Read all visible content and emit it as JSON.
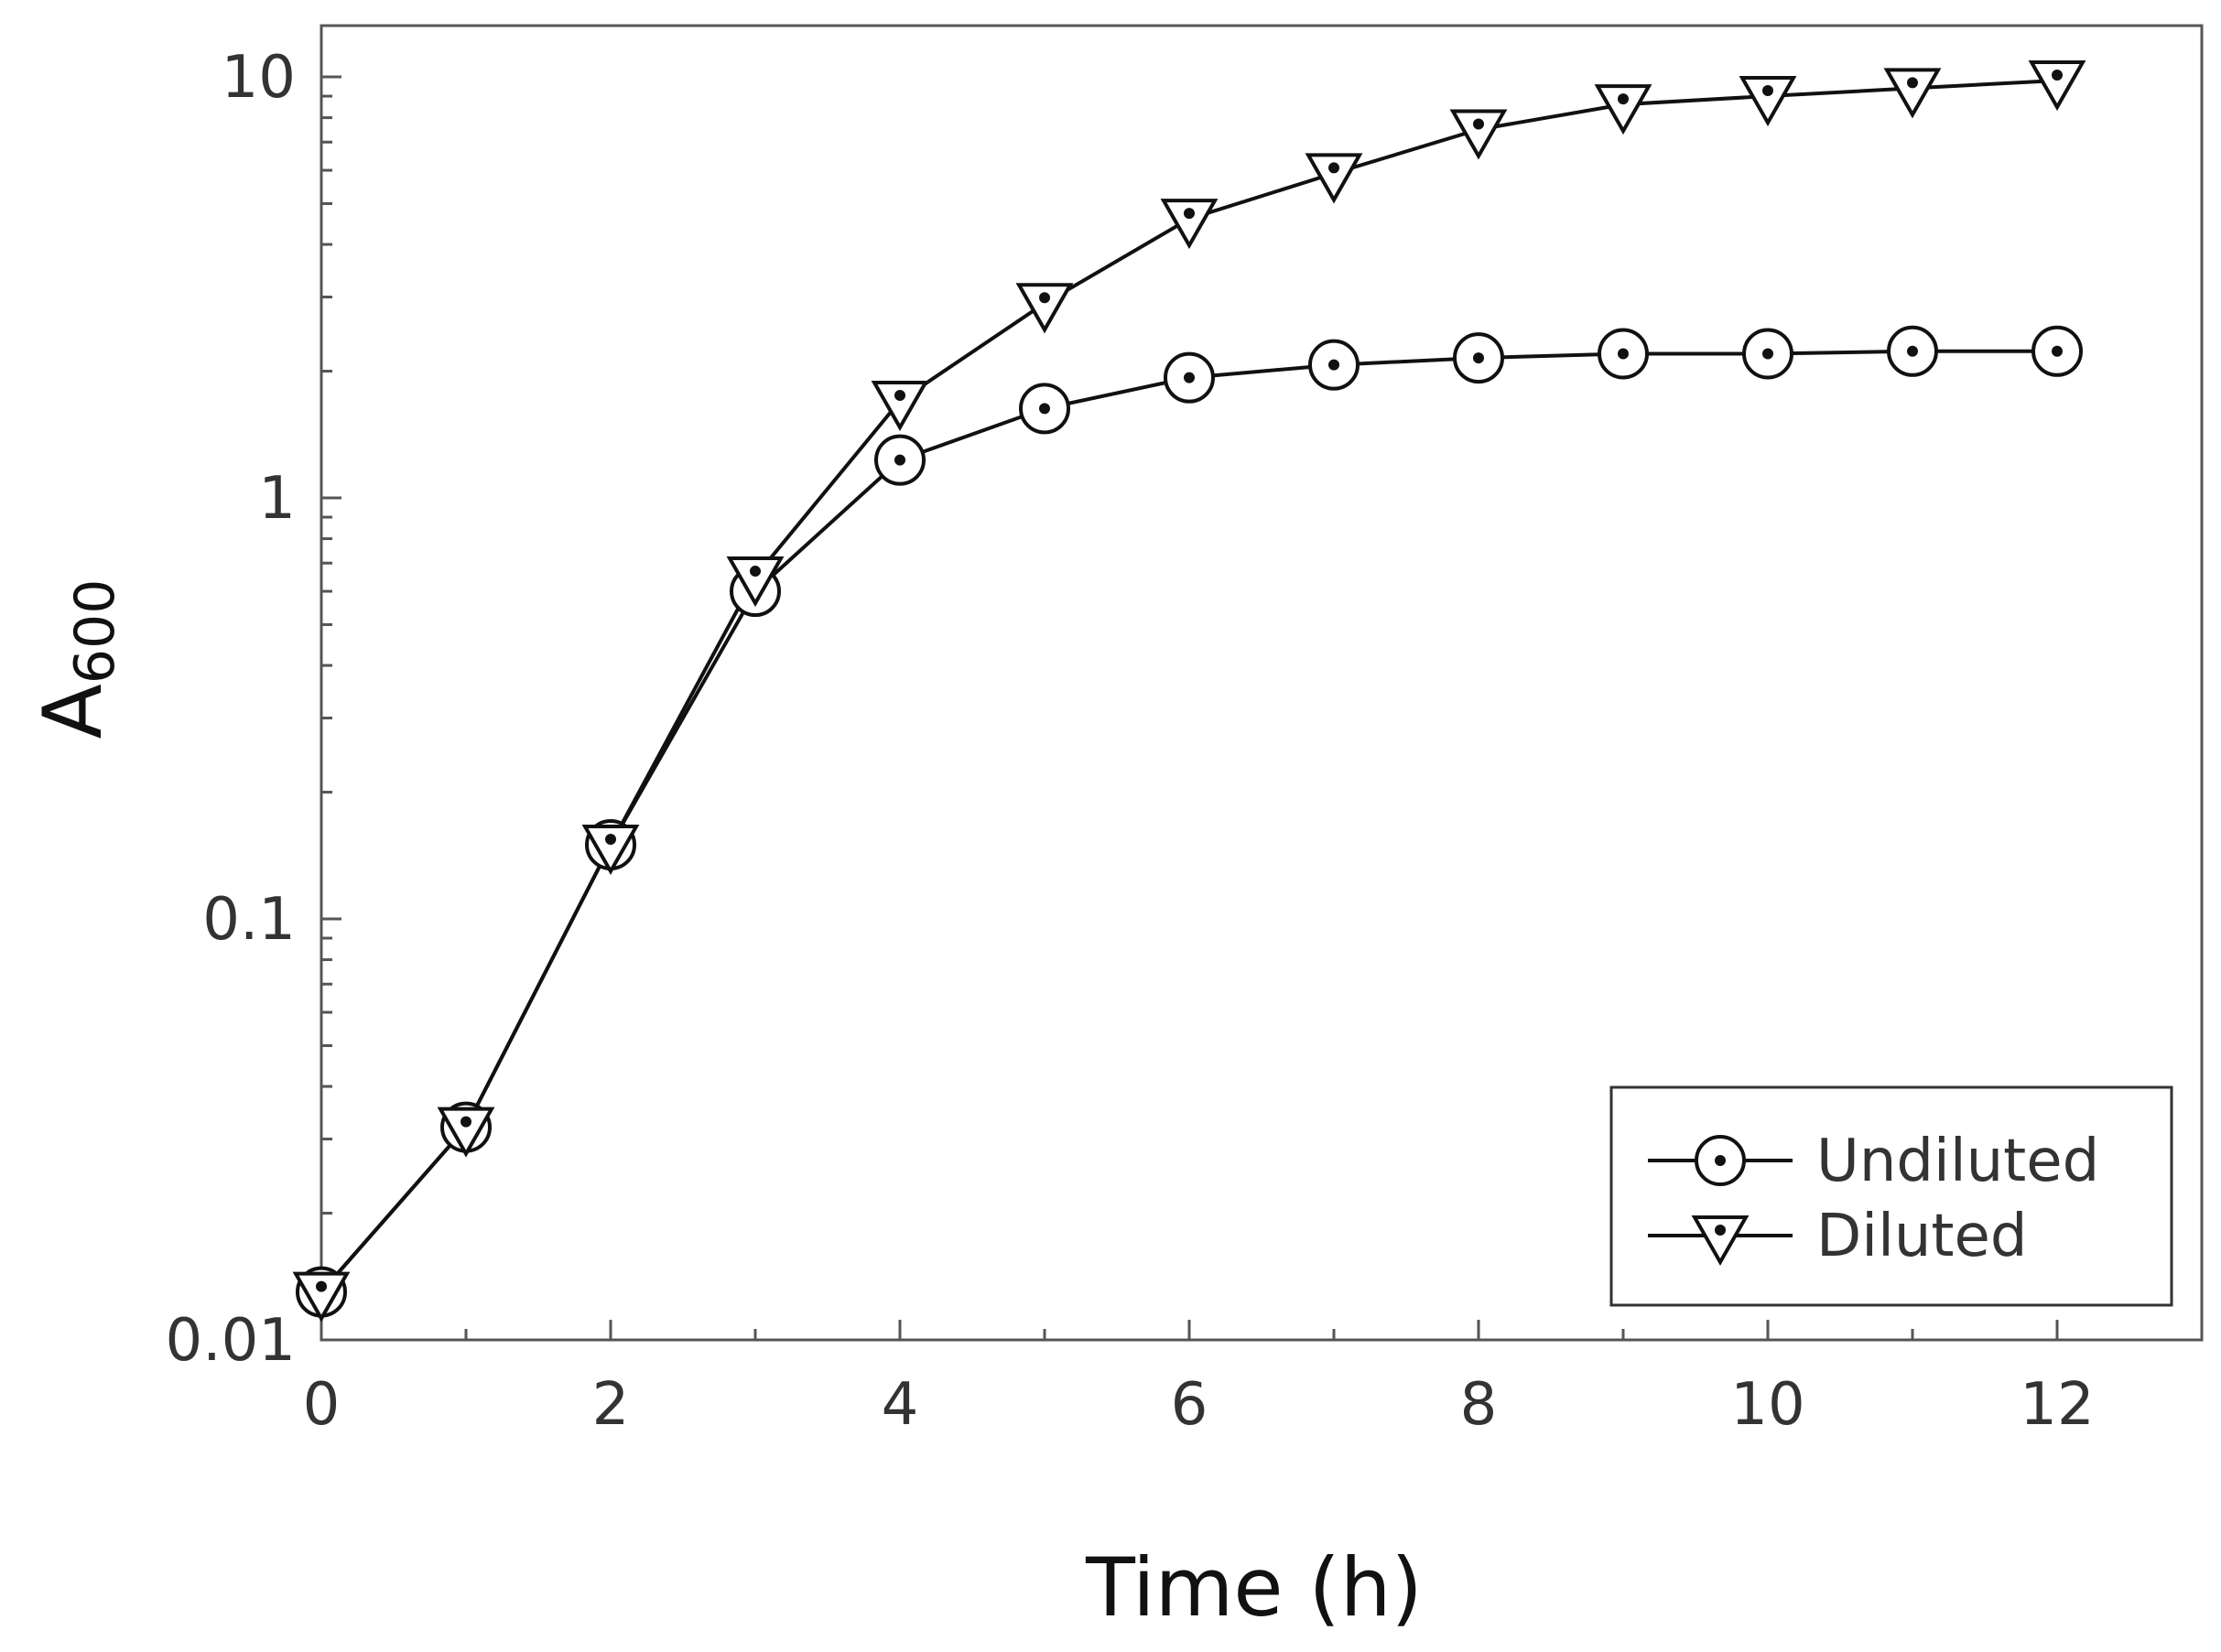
{
  "chart_data": {
    "type": "line",
    "xlabel": "Time (h)",
    "ylabel": {
      "main": "A",
      "sub": "600"
    },
    "xlim": [
      0,
      13
    ],
    "ylim": [
      0.01,
      10
    ],
    "yscale": "log",
    "x_ticks": [
      "0",
      "2",
      "4",
      "6",
      "8",
      "10",
      "12"
    ],
    "y_ticks": [
      "0.01",
      "0.1",
      "1",
      "10"
    ],
    "grid": false,
    "legend_position": "bottom-right",
    "x": [
      0,
      1,
      2,
      3,
      4,
      5,
      6,
      7,
      8,
      9,
      10,
      11,
      12
    ],
    "series": [
      {
        "name": "Undiluted",
        "marker": "circle",
        "values": [
          0.013,
          0.032,
          0.15,
          0.6,
          1.23,
          1.63,
          1.93,
          2.07,
          2.15,
          2.2,
          2.2,
          2.23,
          2.23
        ]
      },
      {
        "name": "Diluted",
        "marker": "triangle-down",
        "values": [
          0.013,
          0.032,
          0.15,
          0.65,
          1.7,
          2.9,
          4.6,
          5.9,
          7.5,
          8.6,
          9.0,
          9.4,
          9.8
        ]
      }
    ],
    "colors": {
      "line": "#111111",
      "marker_fill": "#ffffff"
    }
  }
}
